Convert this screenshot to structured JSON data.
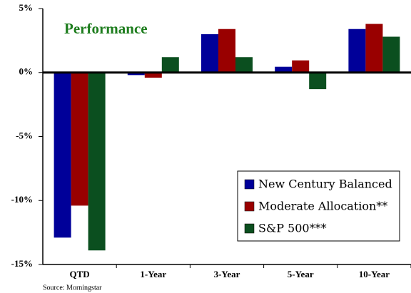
{
  "chart_data": {
    "type": "bar",
    "title": "Performance",
    "source": "Source: Morningstar",
    "categories": [
      "QTD",
      "1-Year",
      "3-Year",
      "5-Year",
      "10-Year"
    ],
    "series": [
      {
        "name": "New Century Balanced",
        "color": "#000099",
        "values": [
          -12.9,
          -0.2,
          3.0,
          0.45,
          3.4
        ]
      },
      {
        "name": "Moderate Allocation**",
        "color": "#990000",
        "values": [
          -10.4,
          -0.4,
          3.4,
          0.95,
          3.8
        ]
      },
      {
        "name": "S&P 500***",
        "color": "#0b4f1f",
        "values": [
          -13.9,
          1.2,
          1.2,
          -1.3,
          2.8
        ]
      }
    ],
    "ylim": [
      -15,
      5
    ],
    "yticks": [
      {
        "value": -15,
        "label": "-15%"
      },
      {
        "value": -10,
        "label": "-10%"
      },
      {
        "value": -5,
        "label": "-5%"
      },
      {
        "value": 0,
        "label": "0%"
      },
      {
        "value": 5,
        "label": "5%"
      }
    ],
    "legend": "lower right"
  }
}
